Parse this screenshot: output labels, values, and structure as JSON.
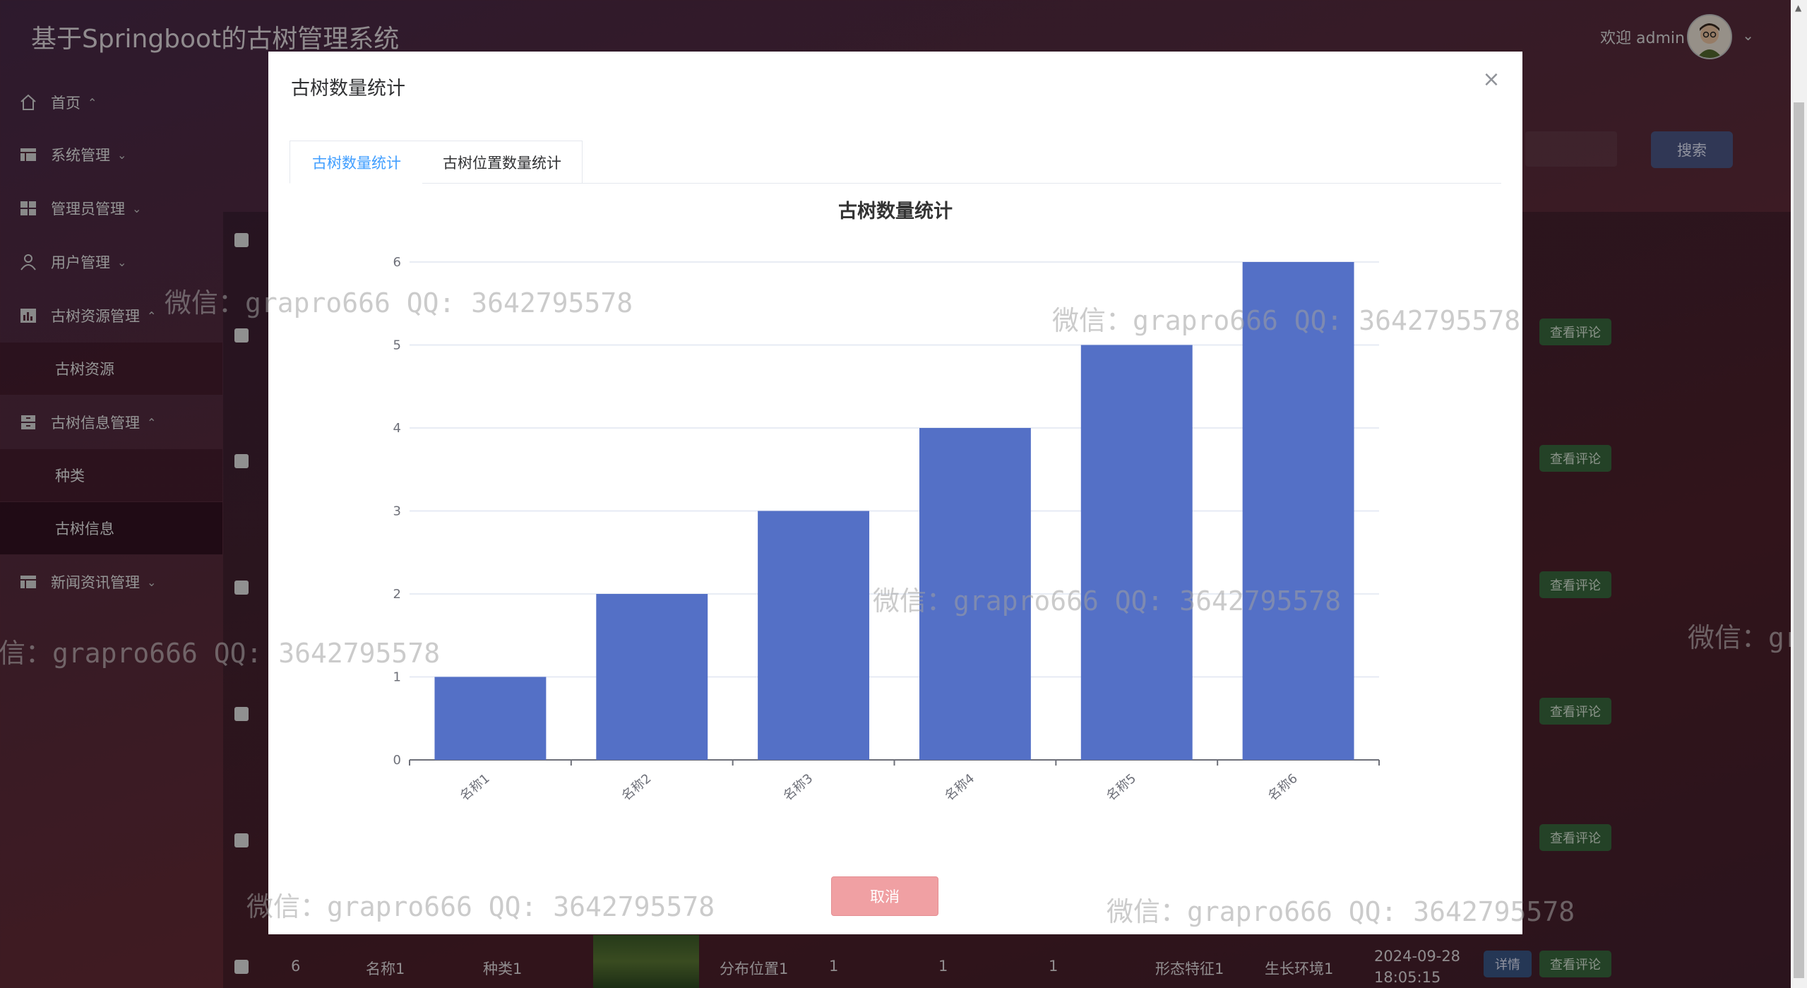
{
  "app": {
    "title": "基于Springboot的古树管理系统",
    "welcome": "欢迎 admin"
  },
  "sidebar": {
    "items": [
      {
        "label": "首页",
        "caret": "⌃"
      },
      {
        "label": "系统管理",
        "caret": "⌄"
      },
      {
        "label": "管理员管理",
        "caret": "⌄"
      },
      {
        "label": "用户管理",
        "caret": "⌄"
      },
      {
        "label": "古树资源管理",
        "caret": "⌃"
      },
      {
        "label": "古树资源"
      },
      {
        "label": "古树信息管理",
        "caret": "⌃"
      },
      {
        "label": "种类"
      },
      {
        "label": "古树信息"
      },
      {
        "label": "新闻资讯管理",
        "caret": "⌄"
      }
    ]
  },
  "toolbar": {
    "search_label": "搜索"
  },
  "table": {
    "comment_label": "查看评论",
    "detail_label": "详情",
    "last_row": {
      "index": "6",
      "name": "名称1",
      "species": "种类1",
      "location": "分布位置1",
      "c1": "1",
      "c2": "1",
      "c3": "1",
      "feature": "形态特征1",
      "env": "生长环境1",
      "date": "2024-09-28",
      "time": "18:05:15"
    }
  },
  "dialog": {
    "title": "古树数量统计",
    "tabs": [
      "古树数量统计",
      "古树位置数量统计"
    ],
    "cancel_label": "取消"
  },
  "watermark": "微信：grapro666 QQ: 3642795578",
  "chart_data": {
    "type": "bar",
    "title": "古树数量统计",
    "categories": [
      "名称1",
      "名称2",
      "名称3",
      "名称4",
      "名称5",
      "名称6"
    ],
    "values": [
      1,
      2,
      3,
      4,
      5,
      6
    ],
    "ylim": [
      0,
      6
    ],
    "yticks": [
      0,
      1,
      2,
      3,
      4,
      5,
      6
    ],
    "bar_color": "#5470c6",
    "grid": true
  },
  "colors": {
    "accent": "#409eff",
    "cancel": "#f0a0a3",
    "comment": "#3b6b3f",
    "search": "#4e5a8a"
  }
}
